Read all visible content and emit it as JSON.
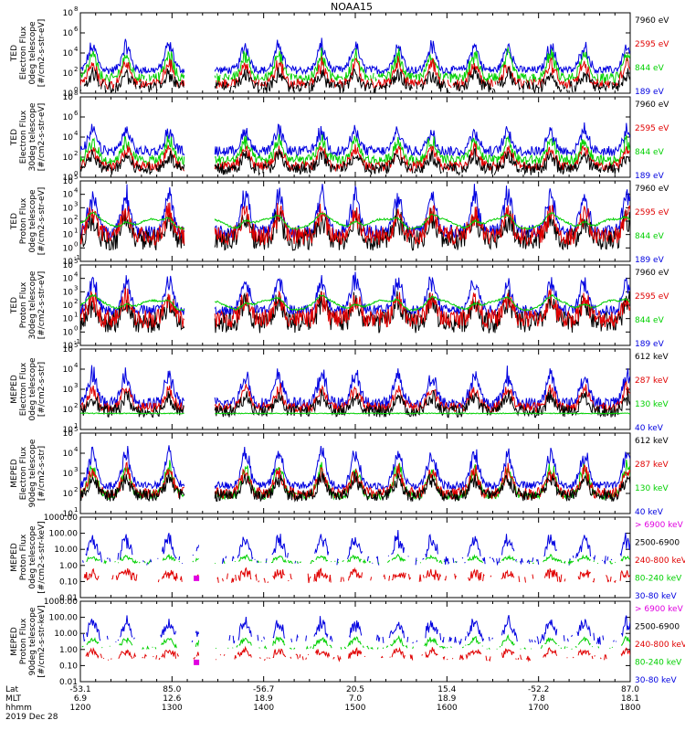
{
  "chart_data": {
    "type": "line",
    "title": "NOAA15",
    "x_axis": {
      "rows": [
        {
          "label": "Lat",
          "values": [
            "-53.1",
            "85.0",
            "-56.7",
            "20.5",
            "15.4",
            "-52.2",
            "87.0"
          ]
        },
        {
          "label": "MLT",
          "values": [
            "6.9",
            "12.6",
            "18.9",
            "7.0",
            "18.9",
            "7.8",
            "18.1"
          ]
        },
        {
          "label": "hhmm",
          "values": [
            "1200",
            "1300",
            "1400",
            "1500",
            "1600",
            "1700",
            "1800"
          ]
        }
      ],
      "date": "2019 Dec 28",
      "range_minutes": [
        0,
        360
      ]
    },
    "panels": [
      {
        "ylabel": [
          "TED",
          "Electron Flux",
          "0deg telescope",
          "[#/cm2-s-str-eV]"
        ],
        "scale": "log",
        "ylim_exp": [
          0,
          8
        ],
        "tick_exps": [
          0,
          2,
          4,
          6,
          8
        ],
        "legend": [
          {
            "label": "7960 eV",
            "color": "#000000"
          },
          {
            "label": "2595 eV",
            "color": "#e00000"
          },
          {
            "label": "844 eV",
            "color": "#00d000"
          },
          {
            "label": "189 eV",
            "color": "#0000e0"
          }
        ],
        "series": [
          {
            "color": "#0000e0",
            "base": 2.3,
            "noise": 0.4,
            "peak": 5.2,
            "cutoff": 1.0
          },
          {
            "color": "#00d000",
            "base": 1.5,
            "noise": 0.5,
            "peak": 4.2,
            "cutoff": 1.2
          },
          {
            "color": "#e00000",
            "base": 0.9,
            "noise": 0.5,
            "peak": 3.3,
            "cutoff": 0.6
          },
          {
            "color": "#000000",
            "base": 0.6,
            "noise": 0.6,
            "peak": 2.2,
            "cutoff": 0.4
          }
        ]
      },
      {
        "ylabel": [
          "TED",
          "Electron Flux",
          "30deg telescope",
          "[#/cm2-s-str-eV]"
        ],
        "scale": "log",
        "ylim_exp": [
          0,
          8
        ],
        "tick_exps": [
          0,
          2,
          4,
          6,
          8
        ],
        "legend": [
          {
            "label": "7960 eV",
            "color": "#000000"
          },
          {
            "label": "2595 eV",
            "color": "#e00000"
          },
          {
            "label": "844 eV",
            "color": "#00d000"
          },
          {
            "label": "189 eV",
            "color": "#0000e0"
          }
        ],
        "series": [
          {
            "color": "#0000e0",
            "base": 2.6,
            "noise": 0.5,
            "peak": 5.0,
            "cutoff": 1.0
          },
          {
            "color": "#00d000",
            "base": 1.7,
            "noise": 0.5,
            "peak": 4.0,
            "cutoff": 1.2
          },
          {
            "color": "#e00000",
            "base": 1.1,
            "noise": 0.5,
            "peak": 3.2,
            "cutoff": 0.6
          },
          {
            "color": "#000000",
            "base": 0.8,
            "noise": 0.6,
            "peak": 2.4,
            "cutoff": 0.4
          }
        ]
      },
      {
        "ylabel": [
          "TED",
          "Proton Flux",
          "0deg telescope",
          "[#/cm2-s-str-eV]"
        ],
        "scale": "log",
        "ylim_exp": [
          -1,
          5
        ],
        "tick_exps": [
          -1,
          0,
          1,
          2,
          3,
          4,
          5
        ],
        "legend": [
          {
            "label": "7960 eV",
            "color": "#000000"
          },
          {
            "label": "2595 eV",
            "color": "#e00000"
          },
          {
            "label": "844 eV",
            "color": "#00d000"
          },
          {
            "label": "189 eV",
            "color": "#0000e0"
          }
        ],
        "series": [
          {
            "color": "#0000e0",
            "base": 1.2,
            "noise": 0.5,
            "peak": 4.5,
            "cutoff": 0.0
          },
          {
            "color": "#000000",
            "base": 0.6,
            "noise": 0.8,
            "peak": 2.5,
            "cutoff": -0.5
          },
          {
            "color": "#e00000",
            "base": 0.9,
            "noise": 0.7,
            "peak": 3.0,
            "cutoff": -0.5
          },
          {
            "color": "#00d000",
            "base": 1.8,
            "noise": 0.15,
            "peak": 3.0,
            "cutoff": 0.5,
            "smooth": true
          }
        ]
      },
      {
        "ylabel": [
          "TED",
          "Proton Flux",
          "30deg telescope",
          "[#/cm2-s-str-eV]"
        ],
        "scale": "log",
        "ylim_exp": [
          -1,
          5
        ],
        "tick_exps": [
          -1,
          0,
          1,
          2,
          3,
          4,
          5
        ],
        "legend": [
          {
            "label": "7960 eV",
            "color": "#000000"
          },
          {
            "label": "2595 eV",
            "color": "#e00000"
          },
          {
            "label": "844 eV",
            "color": "#00d000"
          },
          {
            "label": "189 eV",
            "color": "#0000e0"
          }
        ],
        "series": [
          {
            "color": "#0000e0",
            "base": 1.6,
            "noise": 0.4,
            "peak": 4.3,
            "cutoff": 0.0
          },
          {
            "color": "#000000",
            "base": 0.7,
            "noise": 0.8,
            "peak": 2.6,
            "cutoff": -0.5
          },
          {
            "color": "#e00000",
            "base": 1.0,
            "noise": 0.7,
            "peak": 2.8,
            "cutoff": -0.5
          },
          {
            "color": "#00d000",
            "base": 2.0,
            "noise": 0.15,
            "peak": 3.0,
            "cutoff": 0.5,
            "smooth": true
          }
        ]
      },
      {
        "ylabel": [
          "MEPED",
          "Electron Flux",
          "0deg telescope",
          "[#/cm2-s-str]"
        ],
        "scale": "log",
        "ylim_exp": [
          1,
          5
        ],
        "tick_exps": [
          1,
          2,
          3,
          4,
          5
        ],
        "legend": [
          {
            "label": "612 keV",
            "color": "#000000"
          },
          {
            "label": "287 keV",
            "color": "#e00000"
          },
          {
            "label": "130 keV",
            "color": "#00d000"
          },
          {
            "label": "40 keV",
            "color": "#0000e0"
          }
        ],
        "series": [
          {
            "color": "#0000e0",
            "base": 2.3,
            "noise": 0.3,
            "peak": 4.0,
            "cutoff": 1.5
          },
          {
            "color": "#e00000",
            "base": 2.1,
            "noise": 0.25,
            "peak": 3.2,
            "cutoff": 1.5
          },
          {
            "color": "#000000",
            "base": 1.9,
            "noise": 0.3,
            "peak": 2.8,
            "cutoff": 1.5
          },
          {
            "color": "#00d000",
            "base": 1.8,
            "noise": 0.05,
            "peak": 1.9,
            "cutoff": 1.5,
            "flat": true
          }
        ]
      },
      {
        "ylabel": [
          "MEPED",
          "Electron Flux",
          "90deg telescope",
          "[#/cm2-s-str]"
        ],
        "scale": "log",
        "ylim_exp": [
          1,
          5
        ],
        "tick_exps": [
          1,
          2,
          3,
          4,
          5
        ],
        "legend": [
          {
            "label": "612 keV",
            "color": "#000000"
          },
          {
            "label": "287 keV",
            "color": "#e00000"
          },
          {
            "label": "130 keV",
            "color": "#00d000"
          },
          {
            "label": "40 keV",
            "color": "#0000e0"
          }
        ],
        "series": [
          {
            "color": "#0000e0",
            "base": 2.4,
            "noise": 0.2,
            "peak": 4.3,
            "cutoff": 1.5
          },
          {
            "color": "#00d000",
            "base": 1.9,
            "noise": 0.2,
            "peak": 3.6,
            "cutoff": 1.5
          },
          {
            "color": "#e00000",
            "base": 2.0,
            "noise": 0.3,
            "peak": 3.3,
            "cutoff": 1.5
          },
          {
            "color": "#000000",
            "base": 1.9,
            "noise": 0.3,
            "peak": 2.9,
            "cutoff": 1.5
          }
        ]
      },
      {
        "ylabel": [
          "MEPED",
          "Proton Flux",
          "0deg telescope",
          "[#/cm2-s-str-keV]"
        ],
        "scale": "log",
        "ylim_exp": [
          -2,
          3
        ],
        "tick_labels": [
          "0.01",
          "0.10",
          "1.00",
          "10.00",
          "100.00",
          "1000.00"
        ],
        "tick_exps": [
          -2,
          -1,
          0,
          1,
          2,
          3
        ],
        "legend": [
          {
            "label": "> 6900 keV",
            "color": "#e000e0"
          },
          {
            "label": "2500-6900",
            "color": "#000000"
          },
          {
            "label": "240-800 keV",
            "color": "#e00000"
          },
          {
            "label": "80-240 keV",
            "color": "#00d000"
          },
          {
            "label": "30-80 keV",
            "color": "#0000e0"
          }
        ],
        "series": [
          {
            "color": "#0000e0",
            "base": 0.3,
            "noise": 0.3,
            "peak": 2.0,
            "cutoff": 0.1,
            "sparse": true
          },
          {
            "color": "#00d000",
            "base": 0.2,
            "noise": 0.1,
            "peak": 0.6,
            "cutoff": 0.0,
            "sparse": true
          },
          {
            "color": "#e00000",
            "base": -0.8,
            "noise": 0.3,
            "peak": -0.4,
            "cutoff": -1.5,
            "sparse": true
          }
        ]
      },
      {
        "ylabel": [
          "MEPED",
          "Proton Flux",
          "90deg telescope",
          "[#/cm2-s-str-keV]"
        ],
        "scale": "log",
        "ylim_exp": [
          -2,
          3
        ],
        "tick_labels": [
          "0.01",
          "0.10",
          "1.00",
          "10.00",
          "100.00",
          "1000.00"
        ],
        "tick_exps": [
          -2,
          -1,
          0,
          1,
          2,
          3
        ],
        "legend": [
          {
            "label": "> 6900 keV",
            "color": "#e000e0"
          },
          {
            "label": "2500-6900",
            "color": "#000000"
          },
          {
            "label": "240-800 keV",
            "color": "#e00000"
          },
          {
            "label": "80-240 keV",
            "color": "#00d000"
          },
          {
            "label": "30-80 keV",
            "color": "#0000e0"
          }
        ],
        "series": [
          {
            "color": "#0000e0",
            "base": 0.6,
            "noise": 0.3,
            "peak": 1.9,
            "cutoff": 0.1,
            "sparse": true
          },
          {
            "color": "#00d000",
            "base": 0.1,
            "noise": 0.1,
            "peak": 0.8,
            "cutoff": -0.2,
            "sparse": true
          },
          {
            "color": "#e00000",
            "base": -0.5,
            "noise": 0.2,
            "peak": 0.0,
            "cutoff": -1.5,
            "sparse": true
          }
        ]
      }
    ]
  }
}
